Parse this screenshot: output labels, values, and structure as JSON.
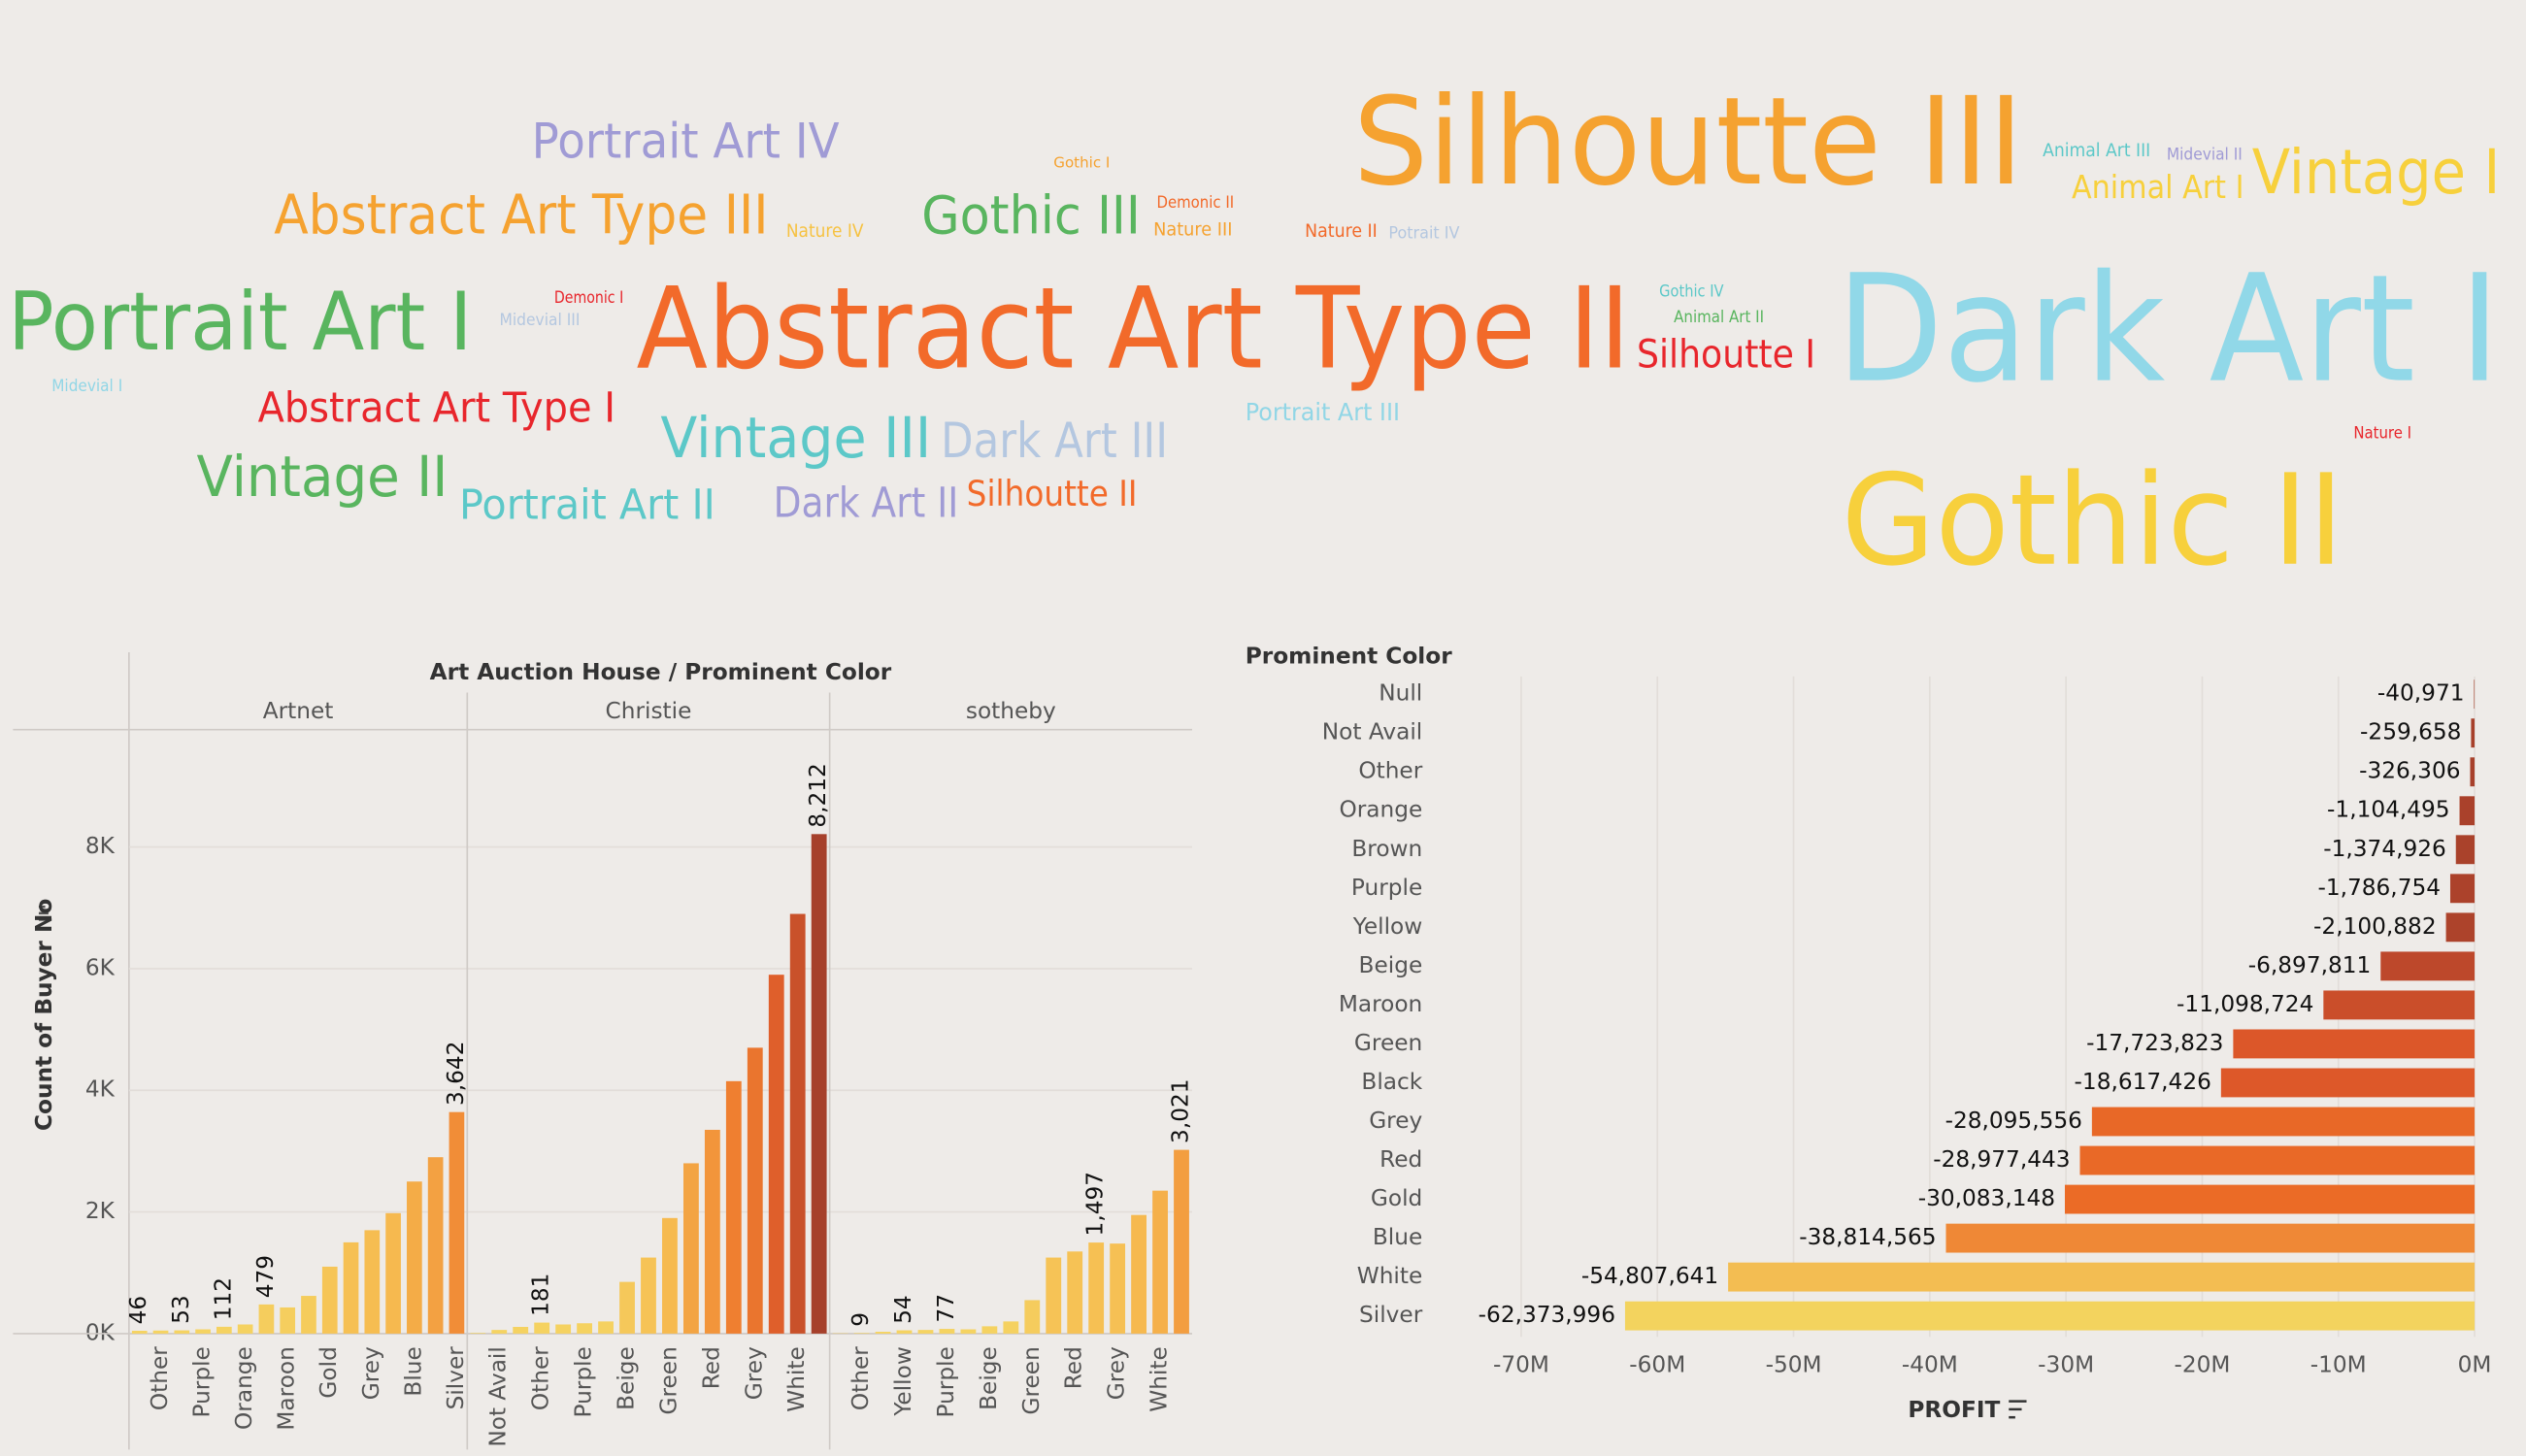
{
  "word_cloud": {
    "words": [
      {
        "text": "Portrait Art IV",
        "color": "#a09bd5"
      },
      {
        "text": "Abstract Art Type III",
        "color": "#f5a230"
      },
      {
        "text": "Nature IV",
        "color": "#f6c242"
      },
      {
        "text": "Gothic I",
        "color": "#f5a230"
      },
      {
        "text": "Gothic III",
        "color": "#59b55f"
      },
      {
        "text": "Demonic II",
        "color": "#f26a2a"
      },
      {
        "text": "Nature III",
        "color": "#f5a230"
      },
      {
        "text": "Nature II",
        "color": "#f26a2a"
      },
      {
        "text": "Potrait IV",
        "color": "#b4c7e0"
      },
      {
        "text": "Silhoutte III",
        "color": "#f5a230"
      },
      {
        "text": "Animal Art III",
        "color": "#5cc8c8"
      },
      {
        "text": "Midevial II",
        "color": "#a09bd5"
      },
      {
        "text": "Vintage I",
        "color": "#f7d03c"
      },
      {
        "text": "Animal Art I",
        "color": "#f7d03c"
      },
      {
        "text": "Portrait Art I",
        "color": "#59b55f"
      },
      {
        "text": "Demonic I",
        "color": "#e8262c"
      },
      {
        "text": "Midevial III",
        "color": "#b4c7e0"
      },
      {
        "text": "Midevial I",
        "color": "#91d6e6"
      },
      {
        "text": "Abstract Art Type II",
        "color": "#f26a2a"
      },
      {
        "text": "Gothic IV",
        "color": "#5cc8c8"
      },
      {
        "text": "Animal Art II",
        "color": "#59b55f"
      },
      {
        "text": "Silhoutte I",
        "color": "#e8262c"
      },
      {
        "text": "Dark Art I",
        "color": "#91d8e8"
      },
      {
        "text": "Abstract Art Type I",
        "color": "#e8262c"
      },
      {
        "text": "Vintage III",
        "color": "#5cc8c8"
      },
      {
        "text": "Dark Art III",
        "color": "#b4c7e0"
      },
      {
        "text": "Portrait Art III",
        "color": "#91d6e6"
      },
      {
        "text": "Nature I",
        "color": "#e8262c"
      },
      {
        "text": "Vintage II",
        "color": "#59b55f"
      },
      {
        "text": "Portrait Art II",
        "color": "#5cc8c8"
      },
      {
        "text": "Dark Art II",
        "color": "#a09bd5"
      },
      {
        "text": "Silhoutte II",
        "color": "#f26a2a"
      },
      {
        "text": "Gothic II",
        "color": "#f7d03c"
      }
    ]
  },
  "chart_data": [
    {
      "type": "bar",
      "title": "Art Auction House  /  Prominent Color",
      "y_label": "Count of Buyer No",
      "ylim": [
        0,
        9930
      ],
      "yticks": [
        {
          "value": 0,
          "label": "0K"
        },
        {
          "value": 2000,
          "label": "2K"
        },
        {
          "value": 4000,
          "label": "4K"
        },
        {
          "value": 6000,
          "label": "6K"
        },
        {
          "value": 8000,
          "label": "8K"
        }
      ],
      "color_range": [
        "#f5d462",
        "#f6b84e",
        "#ef8030",
        "#dd5a2a",
        "#a6402b"
      ],
      "panels": [
        {
          "name": "Artnet",
          "categories": [
            null,
            "Other",
            null,
            "Purple",
            null,
            "Orange",
            null,
            "Maroon",
            null,
            "Gold",
            null,
            "Grey",
            null,
            "Blue",
            null,
            "Silver"
          ],
          "values": [
            46,
            50,
            53,
            70,
            112,
            150,
            479,
            430,
            620,
            1100,
            1500,
            1700,
            1980,
            2500,
            2900,
            3642
          ],
          "value_labels": [
            "46",
            null,
            "53",
            null,
            "112",
            null,
            "479",
            null,
            null,
            null,
            null,
            null,
            null,
            null,
            null,
            "3,642"
          ]
        },
        {
          "name": "Christie",
          "categories": [
            null,
            "Not Avail",
            null,
            "Other",
            null,
            "Purple",
            null,
            "Beige",
            null,
            "Green",
            null,
            "Red",
            null,
            "Grey",
            null,
            "White",
            null
          ],
          "values": [
            10,
            60,
            110,
            181,
            150,
            170,
            200,
            850,
            1250,
            1900,
            2800,
            3350,
            4150,
            4700,
            5900,
            6900,
            8212
          ],
          "value_labels": [
            null,
            null,
            null,
            "181",
            null,
            null,
            null,
            null,
            null,
            null,
            null,
            null,
            null,
            null,
            null,
            null,
            "8,212"
          ]
        },
        {
          "name": "sotheby",
          "categories": [
            null,
            "Other",
            null,
            "Yellow",
            null,
            "Purple",
            null,
            "Beige",
            null,
            "Green",
            null,
            "Red",
            null,
            "Grey",
            null,
            "White",
            null
          ],
          "values": [
            5,
            9,
            30,
            54,
            60,
            77,
            70,
            120,
            200,
            550,
            1250,
            1350,
            1497,
            1480,
            1950,
            2350,
            3021
          ],
          "value_labels": [
            null,
            "9",
            null,
            "54",
            null,
            "77",
            null,
            null,
            null,
            null,
            null,
            null,
            "1,497",
            null,
            null,
            null,
            "3,021"
          ]
        }
      ]
    },
    {
      "type": "hbar",
      "title": "Prominent Color",
      "x_label": "PROFIT",
      "categories": [
        "Null",
        "Not Avail",
        "Other",
        "Orange",
        "Brown",
        "Purple",
        "Yellow",
        "Beige",
        "Maroon",
        "Green",
        "Black",
        "Grey",
        "Red",
        "Gold",
        "Blue",
        "White",
        "Silver"
      ],
      "values": [
        -40971,
        -259658,
        -326306,
        -1104495,
        -1374926,
        -1786754,
        -2100882,
        -6897811,
        -11098724,
        -17723823,
        -18617426,
        -28095556,
        -28977443,
        -30083148,
        -38814565,
        -54807641,
        -62373996
      ],
      "value_labels": [
        "-40,971",
        "-259,658",
        "-326,306",
        "-1,104,495",
        "-1,374,926",
        "-1,786,754",
        "-2,100,882",
        "-6,897,811",
        "-11,098,724",
        "-17,723,823",
        "-18,617,426",
        "-28,095,556",
        "-28,977,443",
        "-30,083,148",
        "-38,814,565",
        "-54,807,641",
        "-62,373,996"
      ],
      "xlim": [
        -73700000,
        100000
      ],
      "xticks": [
        {
          "value": -70000000,
          "label": "-70M"
        },
        {
          "value": -60000000,
          "label": "-60M"
        },
        {
          "value": -50000000,
          "label": "-50M"
        },
        {
          "value": -40000000,
          "label": "-40M"
        },
        {
          "value": -30000000,
          "label": "-30M"
        },
        {
          "value": -20000000,
          "label": "-20M"
        },
        {
          "value": -10000000,
          "label": "-10M"
        },
        {
          "value": 0,
          "label": "0M"
        }
      ],
      "grid": true,
      "color_range": [
        "#a6402b",
        "#d9532a",
        "#ec6d26",
        "#f3a546",
        "#f3d35e"
      ]
    }
  ]
}
